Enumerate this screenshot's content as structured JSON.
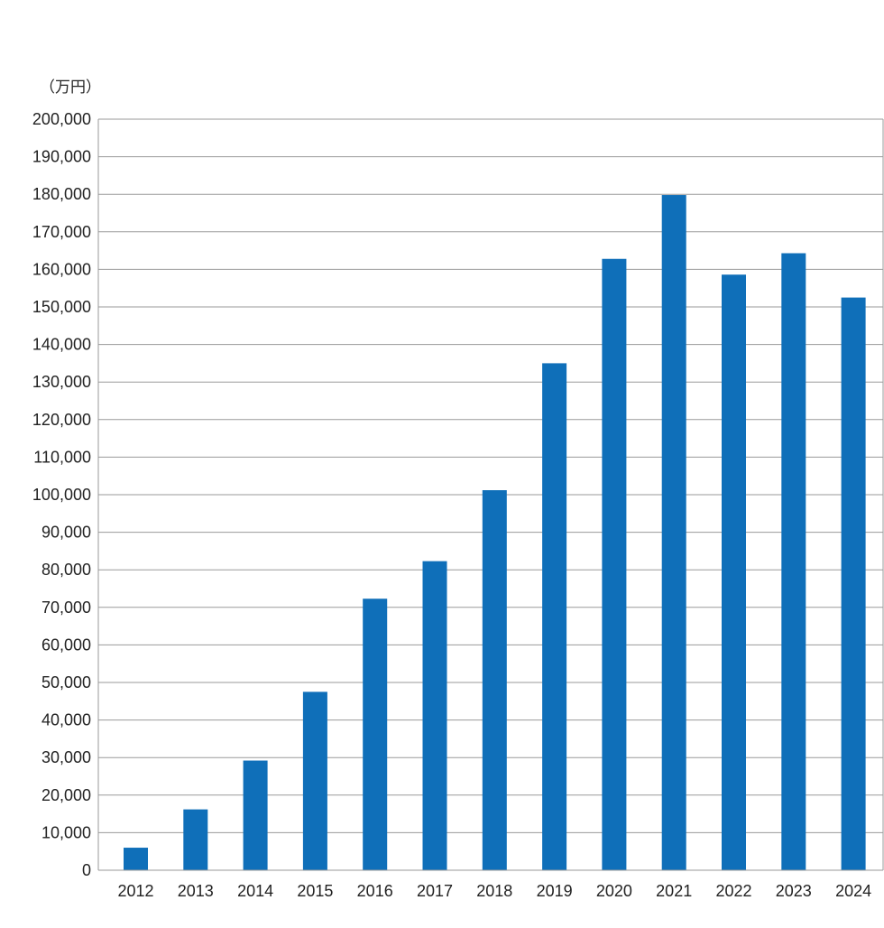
{
  "chart_data": {
    "type": "bar",
    "unit_label": "（万円）",
    "categories": [
      "2012",
      "2013",
      "2014",
      "2015",
      "2016",
      "2017",
      "2018",
      "2019",
      "2020",
      "2021",
      "2022",
      "2023",
      "2024"
    ],
    "series": [
      {
        "values": [
          6000,
          16200,
          29200,
          47500,
          72300,
          82300,
          101200,
          135000,
          162800,
          179800,
          158600,
          164300,
          152500
        ],
        "color": "#0f6fb9"
      }
    ],
    "ylim": [
      0,
      200000
    ],
    "y_ticks": [
      "0",
      "10,000",
      "20,000",
      "30,000",
      "40,000",
      "50,000",
      "60,000",
      "70,000",
      "80,000",
      "90,000",
      "100,000",
      "110,000",
      "120,000",
      "130,000",
      "140,000",
      "150,000",
      "160,000",
      "170,000",
      "180,000",
      "190,000",
      "200,000"
    ],
    "grid": true,
    "legend": "none"
  }
}
